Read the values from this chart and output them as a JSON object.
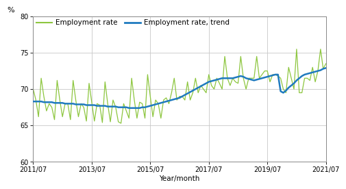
{
  "ylabel": "%",
  "xlabel": "Year/month",
  "ylim": [
    60,
    80
  ],
  "yticks": [
    60,
    65,
    70,
    75,
    80
  ],
  "legend_entries": [
    "Employment rate",
    "Employment rate, trend"
  ],
  "line_color_emp": "#8dc63f",
  "line_color_trend": "#1f7abf",
  "background_color": "#ffffff",
  "grid_color": "#c8c8c8",
  "x_tick_labels": [
    "2011/07",
    "2013/07",
    "2015/07",
    "2017/07",
    "2019/07",
    "2021/07"
  ],
  "employment_rate": [
    70.0,
    68.5,
    66.2,
    71.5,
    69.0,
    67.0,
    68.0,
    67.5,
    65.8,
    71.2,
    68.5,
    66.2,
    68.0,
    68.0,
    65.8,
    71.2,
    68.5,
    66.2,
    68.0,
    67.5,
    65.6,
    70.8,
    68.2,
    65.6,
    68.0,
    67.8,
    65.4,
    71.0,
    68.0,
    65.5,
    68.5,
    67.5,
    65.5,
    65.3,
    68.0,
    67.0,
    66.0,
    71.5,
    68.5,
    66.0,
    68.2,
    68.0,
    66.0,
    72.0,
    69.0,
    66.2,
    68.5,
    68.0,
    66.0,
    68.5,
    68.8,
    68.0,
    69.5,
    71.5,
    68.5,
    69.0,
    69.0,
    68.5,
    71.0,
    68.5,
    69.5,
    71.5,
    69.5,
    70.5,
    70.0,
    69.5,
    72.0,
    70.5,
    70.0,
    71.5,
    70.8,
    70.0,
    74.5,
    71.5,
    70.5,
    71.5,
    71.0,
    70.8,
    74.5,
    71.5,
    70.0,
    71.5,
    71.5,
    71.5,
    74.5,
    71.5,
    72.0,
    72.5,
    72.5,
    71.0,
    72.0,
    72.0,
    71.8,
    71.5,
    70.0,
    69.5,
    73.0,
    71.5,
    70.0,
    75.5,
    69.5,
    69.5,
    71.5,
    71.5,
    71.2,
    73.0,
    71.0,
    72.5,
    75.5,
    72.8,
    73.5
  ],
  "trend_rate": [
    68.3,
    68.3,
    68.3,
    68.3,
    68.2,
    68.2,
    68.2,
    68.2,
    68.1,
    68.1,
    68.1,
    68.1,
    68.0,
    68.0,
    68.0,
    68.0,
    67.9,
    67.9,
    67.9,
    67.9,
    67.8,
    67.8,
    67.8,
    67.8,
    67.7,
    67.7,
    67.7,
    67.7,
    67.6,
    67.6,
    67.6,
    67.6,
    67.5,
    67.5,
    67.5,
    67.5,
    67.4,
    67.4,
    67.4,
    67.4,
    67.4,
    67.5,
    67.5,
    67.6,
    67.7,
    67.8,
    67.9,
    68.0,
    68.1,
    68.2,
    68.3,
    68.4,
    68.5,
    68.6,
    68.7,
    68.8,
    69.0,
    69.2,
    69.4,
    69.6,
    69.8,
    70.0,
    70.2,
    70.4,
    70.6,
    70.8,
    71.0,
    71.1,
    71.2,
    71.3,
    71.4,
    71.5,
    71.5,
    71.5,
    71.5,
    71.5,
    71.6,
    71.7,
    71.8,
    71.7,
    71.5,
    71.4,
    71.3,
    71.2,
    71.3,
    71.4,
    71.5,
    71.6,
    71.7,
    71.8,
    71.9,
    72.0,
    72.0,
    69.7,
    69.5,
    69.8,
    70.2,
    70.5,
    70.8,
    71.2,
    71.5,
    71.8,
    72.0,
    72.1,
    72.2,
    72.3,
    72.4,
    72.5,
    72.6,
    72.8,
    72.9
  ]
}
